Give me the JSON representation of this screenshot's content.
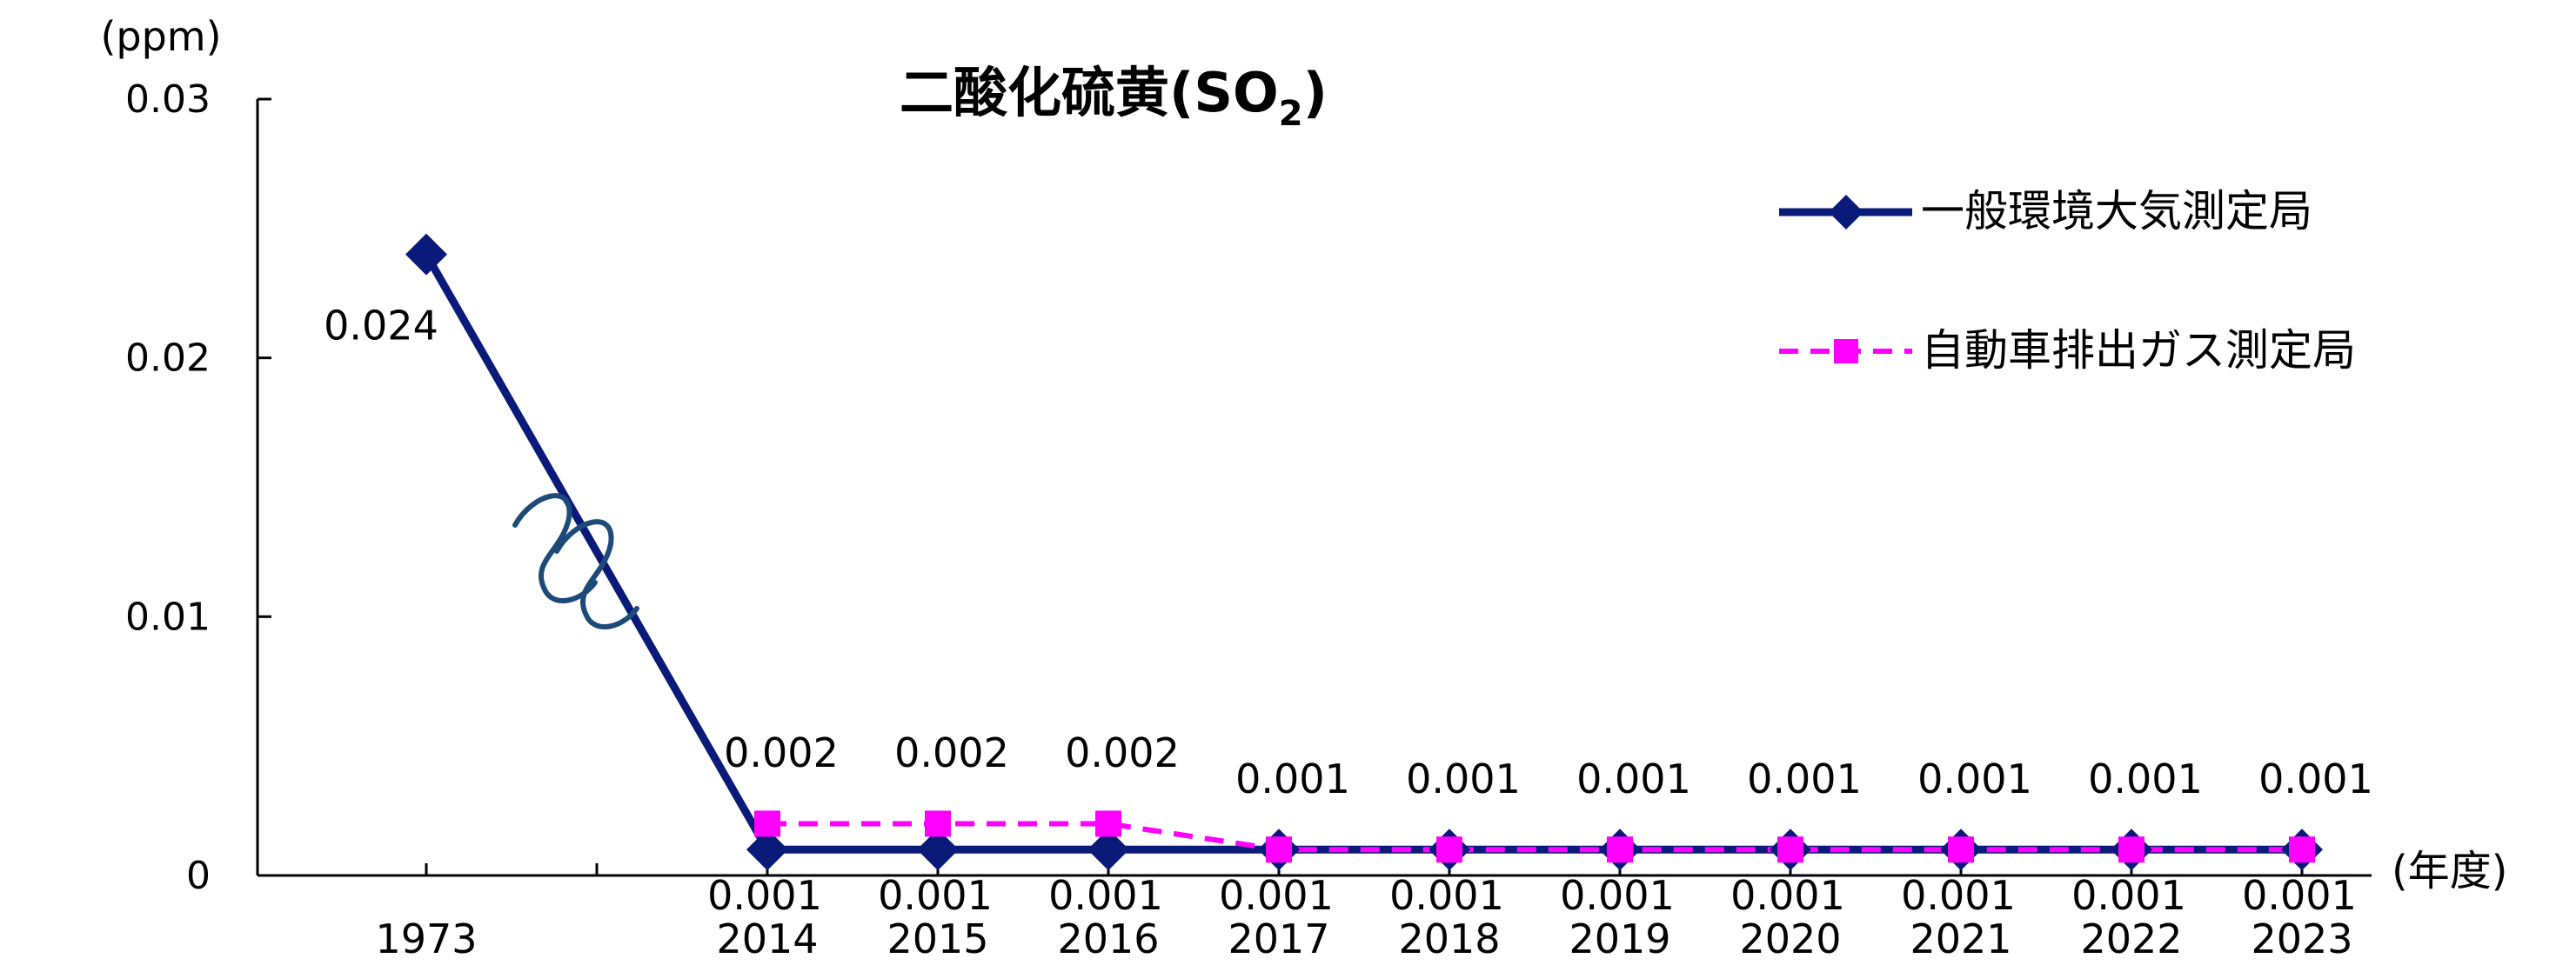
{
  "chart_data": {
    "type": "line",
    "title": "二酸化硫黄(SO",
    "title_subscript": "2",
    "title_suffix": ")",
    "y_unit_label": "(ppm)",
    "x_unit_label": "(年度)",
    "ylim": [
      0,
      0.03
    ],
    "yticks": [
      "0.03",
      "0.02",
      "0.01",
      "0"
    ],
    "ytick_values": [
      0.03,
      0.02,
      0.01,
      0
    ],
    "categories": [
      "1973",
      "",
      "2014",
      "2015",
      "2016",
      "2017",
      "2018",
      "2019",
      "2020",
      "2021",
      "2022",
      "2023"
    ],
    "axis_break_between": [
      "1973",
      "2014"
    ],
    "grid": false,
    "legend_position": "top-right",
    "series": [
      {
        "name": "一般環境大気測定局",
        "color": "#0a1a78",
        "marker": "diamond",
        "line": "solid",
        "values": [
          0.024,
          null,
          0.001,
          0.001,
          0.001,
          0.001,
          0.001,
          0.001,
          0.001,
          0.001,
          0.001,
          0.001
        ],
        "labels": [
          "0.024",
          "",
          "0.001",
          "0.001",
          "0.001",
          "0.001",
          "0.001",
          "0.001",
          "0.001",
          "0.001",
          "0.001",
          "0.001"
        ]
      },
      {
        "name": "自動車排出ガス測定局",
        "color": "#ff00ff",
        "marker": "square",
        "line": "dashed",
        "values": [
          null,
          null,
          0.002,
          0.002,
          0.002,
          0.001,
          0.001,
          0.001,
          0.001,
          0.001,
          0.001,
          0.001
        ],
        "labels": [
          "",
          "",
          "0.002",
          "0.002",
          "0.002",
          "0.001",
          "0.001",
          "0.001",
          "0.001",
          "0.001",
          "0.001",
          "0.001"
        ]
      }
    ]
  }
}
